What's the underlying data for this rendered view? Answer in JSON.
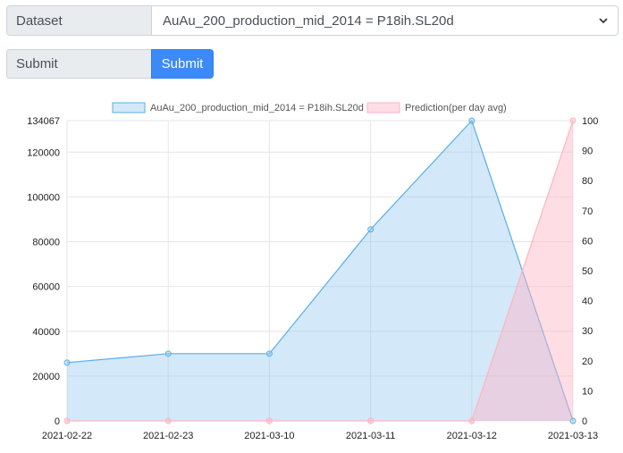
{
  "form": {
    "dataset_label": "Dataset",
    "dataset_value": "AuAu_200_production_mid_2014 = P18ih.SL20d",
    "submit_label": "Submit",
    "submit_button": "Submit"
  },
  "colors": {
    "series1_line": "#5aaee8",
    "series1_fill": "rgba(150,200,240,0.42)",
    "series2_line": "#ffb3c2",
    "series2_fill": "rgba(255,180,195,0.45)",
    "button": "#3b8af7"
  },
  "chart_data": {
    "type": "area",
    "categories": [
      "2021-02-22",
      "2021-02-23",
      "2021-03-10",
      "2021-03-11",
      "2021-03-12",
      "2021-03-13"
    ],
    "series": [
      {
        "name": "AuAu_200_production_mid_2014 = P18ih.SL20d",
        "axis": "left",
        "values": [
          26000,
          30000,
          30000,
          85500,
          134067,
          0
        ]
      },
      {
        "name": "Prediction(per day avg)",
        "axis": "right",
        "values": [
          0,
          0,
          0,
          0,
          0,
          100
        ]
      }
    ],
    "y_left": {
      "min": 0,
      "max": 134067,
      "ticks": [
        0,
        20000,
        40000,
        60000,
        80000,
        100000,
        120000,
        134067
      ]
    },
    "y_right": {
      "min": 0,
      "max": 100,
      "ticks": [
        0,
        10,
        20,
        30,
        40,
        50,
        60,
        70,
        80,
        90,
        100
      ]
    },
    "grid": true,
    "legend_position": "top"
  }
}
